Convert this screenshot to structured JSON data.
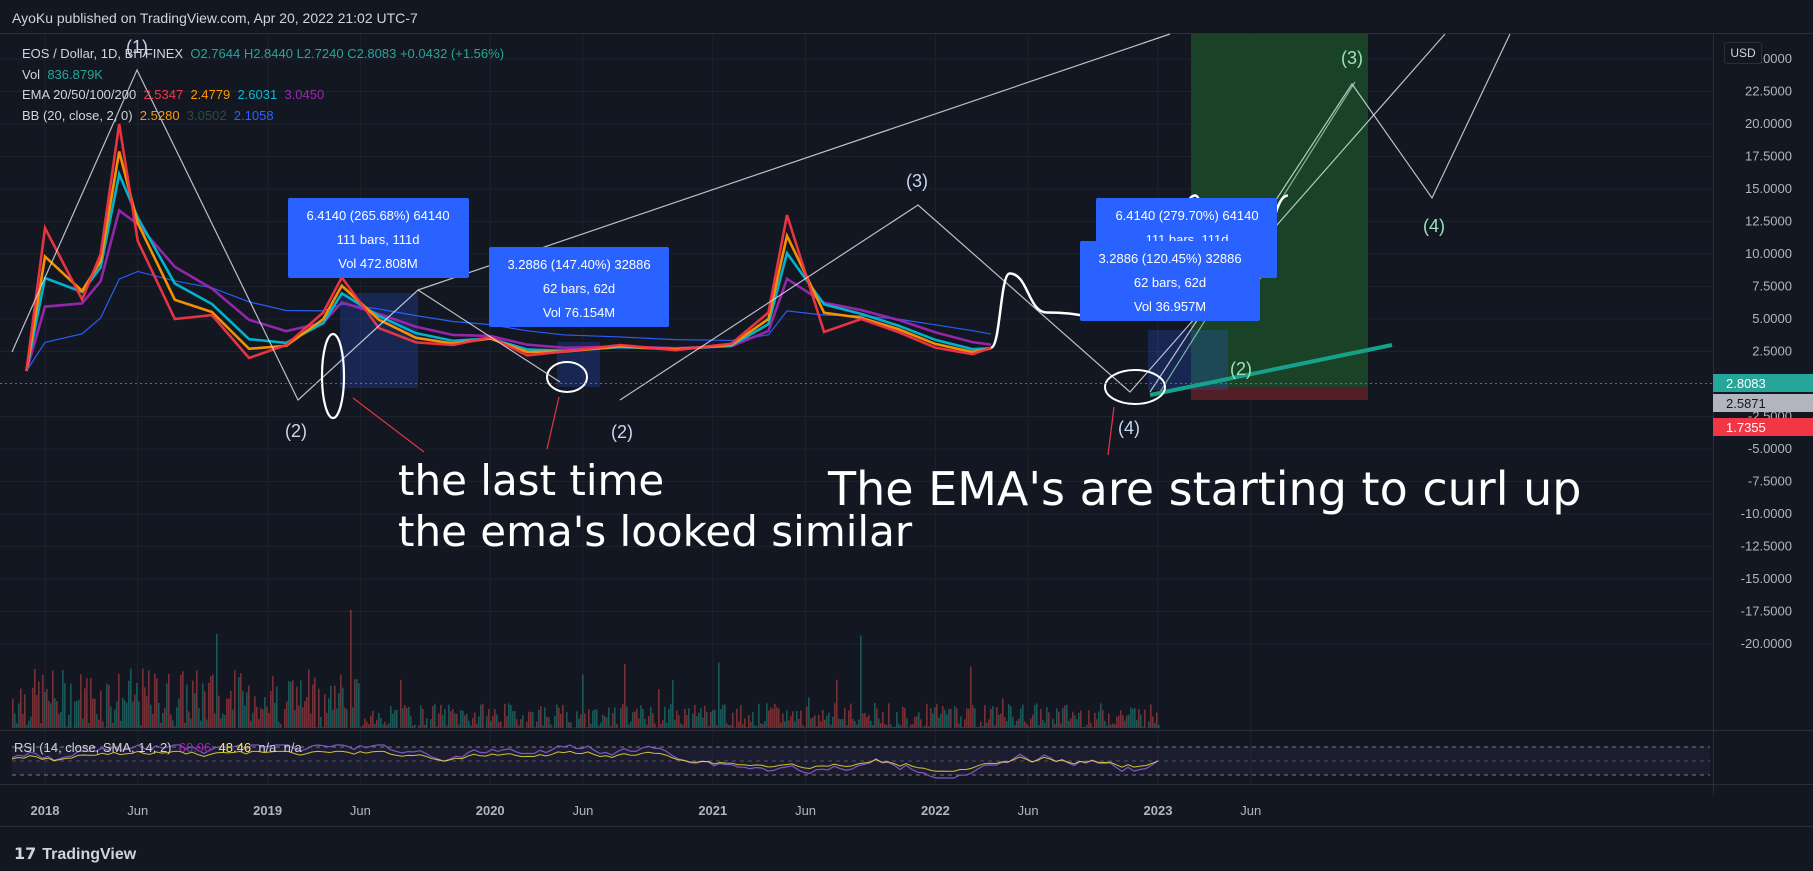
{
  "header": {
    "publisher": "AyoKu published on TradingView.com, Apr 20, 2022 21:02 UTC-7"
  },
  "legend": {
    "symbol": "EOS / Dollar, 1D, BITFINEX",
    "ohlc": "O2.7644 H2.8440 L2.7240 C2.8083 +0.0432 (+1.56%)",
    "vol_label": "Vol",
    "vol_value": "836.879K",
    "ema_label": "EMA 20/50/100/200",
    "ema_values": [
      "2.5347",
      "2.4779",
      "2.6031",
      "3.0450"
    ],
    "bb_label": "BB (20, close, 2, 0)",
    "bb_values": [
      "2.5280",
      "3.0502",
      "2.1058"
    ]
  },
  "price_badges": {
    "last": "2.8083",
    "mid": "2.5871",
    "low": "1.7355",
    "currency": "USD"
  },
  "measures": [
    {
      "l1": "6.4140 (265.68%) 64140",
      "l2": "111 bars, 111d",
      "l3": "Vol 472.808M"
    },
    {
      "l1": "3.2886 (147.40%) 32886",
      "l2": "62 bars, 62d",
      "l3": "Vol 76.154M"
    },
    {
      "l1": "6.4140 (279.70%) 64140",
      "l2": "111 bars, 111d",
      "l3": ""
    },
    {
      "l1": "3.2886 (120.45%) 32886",
      "l2": "62 bars, 62d",
      "l3": "Vol 36.957M"
    }
  ],
  "wave_labels": [
    "(1)",
    "(2)",
    "(3)",
    "(2)",
    "(2)",
    "(3)",
    "(4)",
    "(3)",
    "(4)",
    "(2)"
  ],
  "annotations": {
    "left_line1": "the last time",
    "left_line2": "the ema's looked similar",
    "right": "The EMA's are starting to curl up"
  },
  "rsi_label": "RSI (14, close, SMA, 14, 2)",
  "rsi_values": [
    "60.96",
    "48.46",
    "n/a",
    "n/a"
  ],
  "footer": {
    "brand": "TradingView"
  },
  "chart_data": {
    "type": "line",
    "title": "EOS / Dollar, 1D, BITFINEX",
    "y_ticks": [
      "25.0000",
      "22.5000",
      "20.0000",
      "17.5000",
      "15.0000",
      "12.5000",
      "10.0000",
      "7.5000",
      "5.0000",
      "2.5000",
      "-2.5000",
      "-5.0000",
      "-7.5000",
      "-10.0000",
      "-12.5000",
      "-15.0000",
      "-17.5000",
      "-20.0000"
    ],
    "ylim": [
      -20,
      25
    ],
    "x_ticks": [
      "2018",
      "Jun",
      "2019",
      "Jun",
      "2020",
      "Jun",
      "2021",
      "Jun",
      "2022",
      "Jun",
      "2023",
      "Jun"
    ],
    "series": [
      {
        "name": "Price",
        "x": [
          "2017-12",
          "2018-01",
          "2018-03",
          "2018-04",
          "2018-05",
          "2018-06",
          "2018-08",
          "2018-10",
          "2018-12",
          "2019-02",
          "2019-04",
          "2019-05",
          "2019-07",
          "2019-09",
          "2019-11",
          "2020-01",
          "2020-03",
          "2020-05",
          "2020-08",
          "2020-11",
          "2021-02",
          "2021-04",
          "2021-05",
          "2021-07",
          "2021-09",
          "2021-11",
          "2022-01",
          "2022-03",
          "2022-04"
        ],
        "values": [
          1.0,
          12.0,
          6.5,
          10.0,
          20.0,
          11.0,
          5.0,
          5.3,
          2.0,
          3.0,
          5.5,
          8.2,
          4.3,
          3.2,
          3.0,
          3.6,
          2.2,
          2.5,
          3.0,
          2.6,
          3.1,
          5.5,
          13.0,
          4.0,
          5.0,
          4.0,
          2.8,
          2.3,
          2.8
        ]
      },
      {
        "name": "EMA 20",
        "values": [
          2.5347
        ]
      },
      {
        "name": "EMA 50",
        "values": [
          2.4779
        ]
      },
      {
        "name": "EMA 100",
        "values": [
          2.6031
        ]
      },
      {
        "name": "EMA 200",
        "values": [
          3.045
        ]
      }
    ],
    "projection": {
      "x": [
        "2022-04",
        "2022-05",
        "2022-07",
        "2022-11",
        "2023-01",
        "2023-03",
        "2023-04",
        "2023-06",
        "2023-08"
      ],
      "values": [
        2.8,
        8.5,
        5.5,
        5.0,
        7.0,
        14.5,
        10.0,
        7.5,
        14.5
      ]
    }
  }
}
